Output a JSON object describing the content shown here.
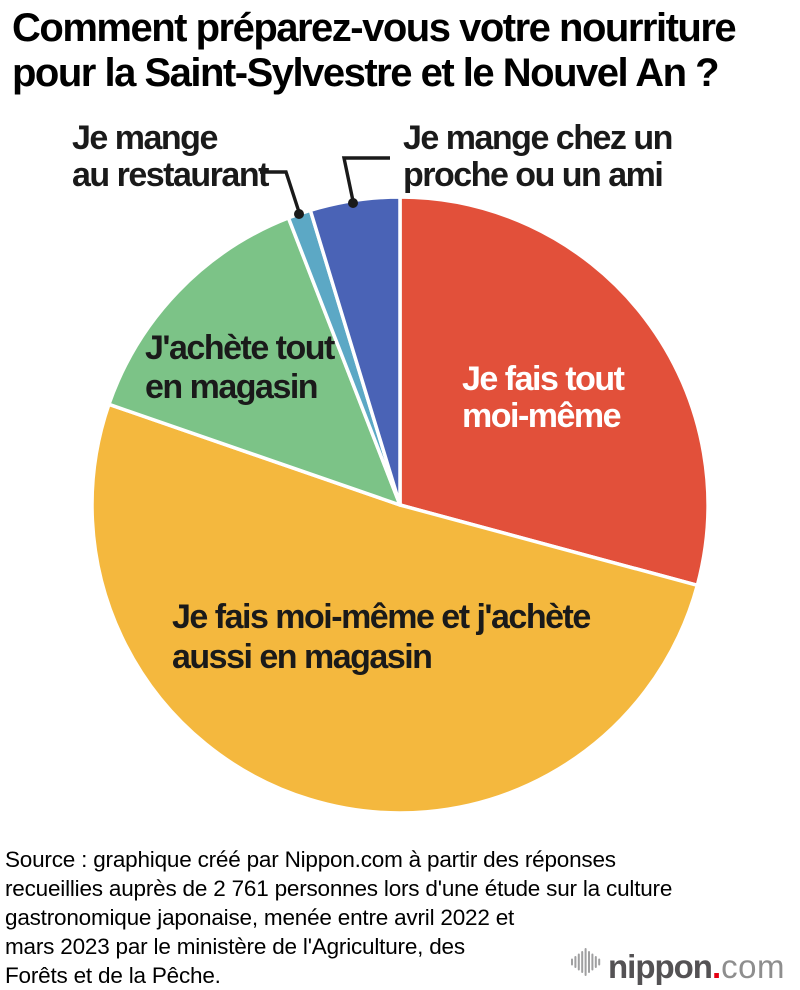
{
  "title": {
    "line1": "Comment préparez-vous votre nourriture",
    "line2": "pour la Saint-Sylvestre et le Nouvel An ?"
  },
  "chart_data": {
    "type": "pie",
    "title": "Comment préparez-vous votre nourriture pour la Saint-Sylvestre et le Nouvel An ?",
    "start_angle_deg": 0,
    "direction": "clockwise",
    "values_unit": "percent",
    "values_estimated_from_angles": true,
    "legend_position": "labels-on-chart",
    "segments": [
      {
        "label": "Je fais tout moi-même",
        "value_pct": 29.2,
        "color": "#E2503A"
      },
      {
        "label": "Je fais moi-même et j'achète aussi en magasin",
        "value_pct": 51.1,
        "color": "#F4B83E"
      },
      {
        "label": "J'achète tout en magasin",
        "value_pct": 13.8,
        "color": "#7CC387"
      },
      {
        "label": "Je mange au restaurant",
        "value_pct": 1.2,
        "color": "#5CA8C5"
      },
      {
        "label": "Je mange chez un proche ou un ami",
        "value_pct": 4.7,
        "color": "#4A63B6"
      }
    ]
  },
  "labels": {
    "restaurant": {
      "line1": "Je mange",
      "line2": "au restaurant"
    },
    "proche": {
      "line1": "Je mange chez un",
      "line2": "proche ou un ami"
    },
    "magasin": {
      "line1": "J'achète tout",
      "line2": "en magasin"
    },
    "moimeme": {
      "line1": "Je fais tout",
      "line2": "moi-même"
    },
    "mixte": {
      "line1": "Je fais moi-même et j'achète",
      "line2": "aussi en magasin"
    }
  },
  "source": {
    "lines": [
      "Source : graphique créé par Nippon.com à partir des réponses",
      "recueillies auprès de 2 761 personnes lors d'une étude sur la culture",
      "gastronomique japonaise, menée entre avril 2022 et",
      "mars 2023 par le ministère de l'Agriculture, des",
      "Forêts et de la Pêche."
    ]
  },
  "logo": {
    "name": "nippon",
    "dot": ".",
    "tld": "com"
  },
  "colors": {
    "leader_line": "#1a1a1a",
    "slice_separator": "#ffffff",
    "logo_gray": "#545254",
    "logo_light_gray": "#8e8e8e",
    "logo_red": "#e60012"
  }
}
